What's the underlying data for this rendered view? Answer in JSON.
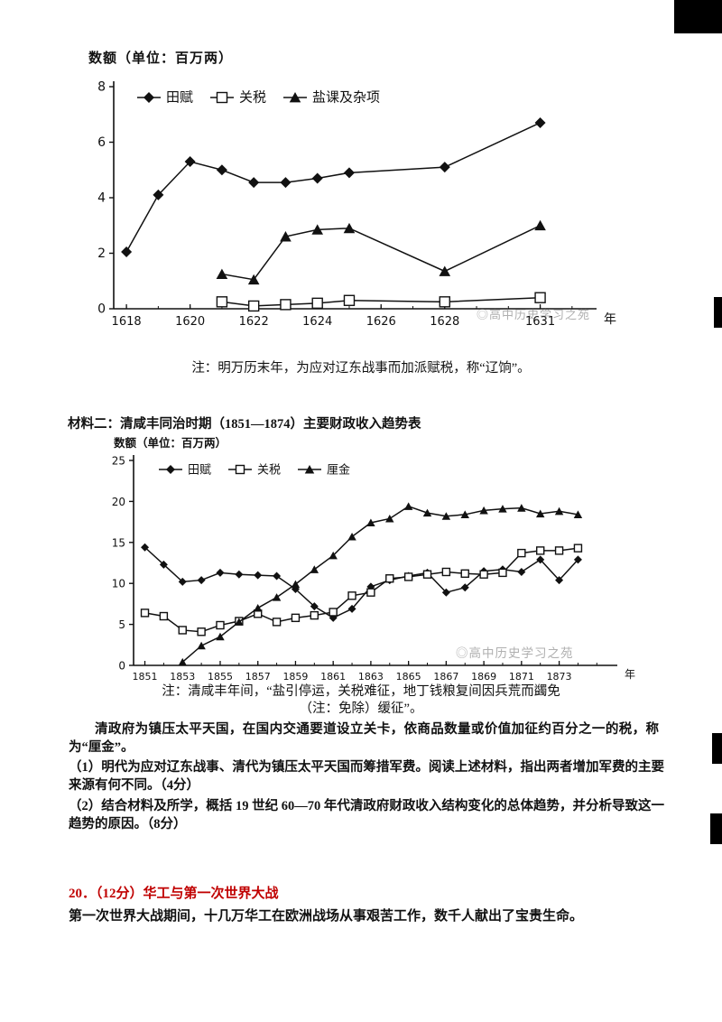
{
  "page": {
    "note1": "注：明万历末年，为应对辽东战事而加派赋税，称“辽饷”。",
    "material2_label": "材料二：",
    "material2_title": "清咸丰同治时期（1851—1874）主要财政收入趋势表",
    "note2_line1": "注：清咸丰年间，“盐引停运，关税难征，地丁钱粮复间因兵荒而蠲免",
    "note2_line2": "（注：免除）缓征”。",
    "para1": "清政府为镇压太平天国，在国内交通要道设立关卡，依商品数量或价值加征约百分之一的税，称为“厘金”。",
    "q1": "（1）明代为应对辽东战事、清代为镇压太平天国而筹措军费。阅读上述材料，指出两者增加军费的主要来源有何不同。（4分）",
    "q2": "（2）结合材料及所学，概括 19 世纪 60—70 年代清政府财政收入结构变化的总体趋势，并分析导致这一趋势的原因。（8分）",
    "q20_title": "20．（12分）华工与第一次世界大战",
    "q20_intro": "第一次世界大战期间，十几万华工在欧洲战场从事艰苦工作，数千人献出了宝贵生命。",
    "watermark": "◎高中历史学习之苑"
  },
  "chart_data": [
    {
      "type": "line",
      "title": "数额（单位：百万两）",
      "x_suffix": "年",
      "xlim": [
        1617.6,
        1632.6
      ],
      "ylim": [
        0,
        8
      ],
      "x_ticks": [
        1618,
        1620,
        1622,
        1624,
        1626,
        1628,
        1631
      ],
      "y_ticks": [
        0,
        2,
        4,
        6,
        8
      ],
      "legend_position": "top-inside",
      "grid": false,
      "note": "注：明万历末年，为应对辽东战事而加派赋税，称“辽饷”。",
      "series": [
        {
          "name": "田赋",
          "marker": "diamond",
          "x": [
            1618,
            1619,
            1620,
            1621,
            1622,
            1623,
            1624,
            1625,
            1628,
            1631
          ],
          "values": [
            2.05,
            4.1,
            5.3,
            5.0,
            4.55,
            4.55,
            4.7,
            4.9,
            5.1,
            6.7
          ]
        },
        {
          "name": "关税",
          "marker": "square",
          "x": [
            1621,
            1622,
            1623,
            1624,
            1625,
            1628,
            1631
          ],
          "values": [
            0.25,
            0.1,
            0.15,
            0.2,
            0.3,
            0.25,
            0.4
          ]
        },
        {
          "name": "盐课及杂项",
          "marker": "triangle",
          "x": [
            1621,
            1622,
            1623,
            1624,
            1625,
            1628,
            1631
          ],
          "values": [
            1.25,
            1.05,
            2.6,
            2.85,
            2.9,
            1.35,
            3.0
          ]
        }
      ]
    },
    {
      "type": "line",
      "title": "数额（单位：百万两）",
      "x_suffix": "年",
      "xlim": [
        1850.4,
        1875.8
      ],
      "ylim": [
        0,
        25
      ],
      "x_ticks": [
        1851,
        1853,
        1855,
        1857,
        1859,
        1861,
        1863,
        1865,
        1867,
        1869,
        1871,
        1873
      ],
      "y_ticks": [
        0,
        5,
        10,
        15,
        20,
        25
      ],
      "legend_position": "top-inside",
      "grid": false,
      "series": [
        {
          "name": "田赋",
          "marker": "diamond",
          "x": [
            1851,
            1852,
            1853,
            1854,
            1855,
            1856,
            1857,
            1858,
            1859,
            1860,
            1861,
            1862,
            1863,
            1864,
            1865,
            1866,
            1867,
            1868,
            1869,
            1870,
            1871,
            1872,
            1873,
            1874
          ],
          "values": [
            14.4,
            12.3,
            10.2,
            10.4,
            11.3,
            11.1,
            11.0,
            10.9,
            9.3,
            7.2,
            5.8,
            6.9,
            9.6,
            10.4,
            10.9,
            11.3,
            8.9,
            9.5,
            11.5,
            11.7,
            11.4,
            12.9,
            10.4,
            12.9
          ]
        },
        {
          "name": "关税",
          "marker": "square",
          "x": [
            1851,
            1852,
            1853,
            1854,
            1855,
            1856,
            1857,
            1858,
            1859,
            1860,
            1861,
            1862,
            1863,
            1864,
            1865,
            1866,
            1867,
            1868,
            1869,
            1870,
            1871,
            1872,
            1873,
            1874
          ],
          "values": [
            6.4,
            6.0,
            4.3,
            4.1,
            4.9,
            5.4,
            6.3,
            5.3,
            5.8,
            6.1,
            6.5,
            8.5,
            8.9,
            10.6,
            10.8,
            11.1,
            11.4,
            11.2,
            11.1,
            11.3,
            13.7,
            14.0,
            14.0,
            14.3
          ]
        },
        {
          "name": "厘金",
          "marker": "triangle",
          "x": [
            1853,
            1854,
            1855,
            1856,
            1857,
            1858,
            1859,
            1860,
            1861,
            1862,
            1863,
            1864,
            1865,
            1866,
            1867,
            1868,
            1869,
            1870,
            1871,
            1872,
            1873,
            1874
          ],
          "values": [
            0.4,
            2.4,
            3.5,
            5.3,
            7.0,
            8.3,
            9.9,
            11.7,
            13.4,
            15.7,
            17.4,
            17.9,
            19.4,
            18.6,
            18.2,
            18.4,
            18.9,
            19.1,
            19.2,
            18.5,
            18.8,
            18.4
          ]
        }
      ]
    }
  ]
}
